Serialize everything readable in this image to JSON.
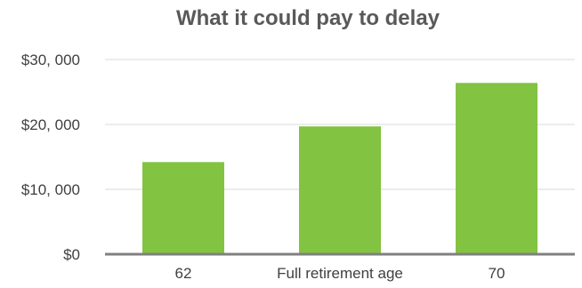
{
  "chart_data": {
    "type": "bar",
    "title": "What it could pay to delay",
    "xlabel": "",
    "ylabel": "",
    "categories": [
      "62",
      "Full retirement age",
      "70"
    ],
    "values": [
      14200,
      19700,
      26400
    ],
    "ylim": [
      0,
      30000
    ],
    "y_ticks": [
      0,
      10000,
      20000,
      30000
    ],
    "y_tick_labels": [
      "$0",
      "$10, 000",
      "$20, 000",
      "$30, 000"
    ],
    "grid": true,
    "legend": "none",
    "colors": {
      "bar": "#82C341",
      "gridline": "#D9D9D9",
      "axis": "#808080",
      "title": "#595959",
      "tick_label": "#404040"
    }
  }
}
